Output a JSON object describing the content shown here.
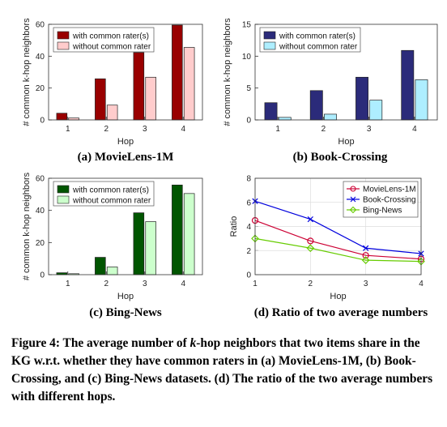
{
  "chart_data": [
    {
      "type": "bar",
      "ylabel": "# common k-hop neighbors",
      "xlabel": "Hop",
      "categories": [
        "1",
        "2",
        "3",
        "4"
      ],
      "ylim": [
        0,
        60
      ],
      "yticks": [
        0,
        20,
        40,
        60
      ],
      "series": [
        {
          "name": "with common rater(s)",
          "values": [
            4.2,
            25.8,
            42.3,
            59.5
          ]
        },
        {
          "name": "without common rater",
          "values": [
            1.2,
            9.3,
            26.8,
            45.5
          ]
        }
      ],
      "colors": [
        "#990000",
        "#ffcccc"
      ],
      "legend": "top-left",
      "caption": "(a) MovieLens-1M"
    },
    {
      "type": "bar",
      "ylabel": "# common k-hop neighbors",
      "xlabel": "Hop",
      "categories": [
        "1",
        "2",
        "3",
        "4"
      ],
      "ylim": [
        0,
        15
      ],
      "yticks": [
        0,
        5,
        10,
        15
      ],
      "series": [
        {
          "name": "with common rater(s)",
          "values": [
            2.7,
            4.6,
            6.7,
            10.9
          ]
        },
        {
          "name": "without common rater",
          "values": [
            0.4,
            0.9,
            3.1,
            6.3
          ]
        }
      ],
      "colors": [
        "#2b2b7a",
        "#aeeeff"
      ],
      "legend": "top-left",
      "caption": "(b) Book-Crossing"
    },
    {
      "type": "bar",
      "ylabel": "# common k-hop neighbors",
      "xlabel": "Hop",
      "categories": [
        "1",
        "2",
        "3",
        "4"
      ],
      "ylim": [
        0,
        60
      ],
      "yticks": [
        0,
        20,
        40,
        60
      ],
      "series": [
        {
          "name": "with common rater(s)",
          "values": [
            1.2,
            10.8,
            38.5,
            55.8
          ]
        },
        {
          "name": "without common rater",
          "values": [
            0.6,
            4.8,
            33.0,
            50.5
          ]
        }
      ],
      "colors": [
        "#005500",
        "#ccffcc"
      ],
      "legend": "top-left",
      "caption": "(c) Bing-News"
    },
    {
      "type": "line",
      "ylabel": "Ratio",
      "xlabel": "Hop",
      "x": [
        1,
        2,
        3,
        4
      ],
      "xlim": [
        1,
        4
      ],
      "ylim": [
        0,
        8
      ],
      "yticks": [
        0,
        2,
        4,
        6,
        8
      ],
      "grid": true,
      "series": [
        {
          "name": "MovieLens-1M",
          "values": [
            4.5,
            2.8,
            1.6,
            1.3
          ],
          "color": "#cc0033",
          "marker": "circle"
        },
        {
          "name": "Book-Crossing",
          "values": [
            6.1,
            4.6,
            2.2,
            1.75
          ],
          "color": "#0000dd",
          "marker": "x"
        },
        {
          "name": "Bing-News",
          "values": [
            3.0,
            2.2,
            1.2,
            1.1
          ],
          "color": "#66cc00",
          "marker": "diamond"
        }
      ],
      "legend": "top-right",
      "caption": "(d) Ratio of two average numbers"
    }
  ],
  "figure_caption": {
    "prefix": "Figure 4: The average number of ",
    "k": "k",
    "suffix": "-hop neighbors that two items share in the KG w.r.t. whether they have common raters in (a) MovieLens-1M, (b) Book-Crossing, and (c) Bing-News datasets. (d) The ratio of the two average numbers with different hops."
  }
}
